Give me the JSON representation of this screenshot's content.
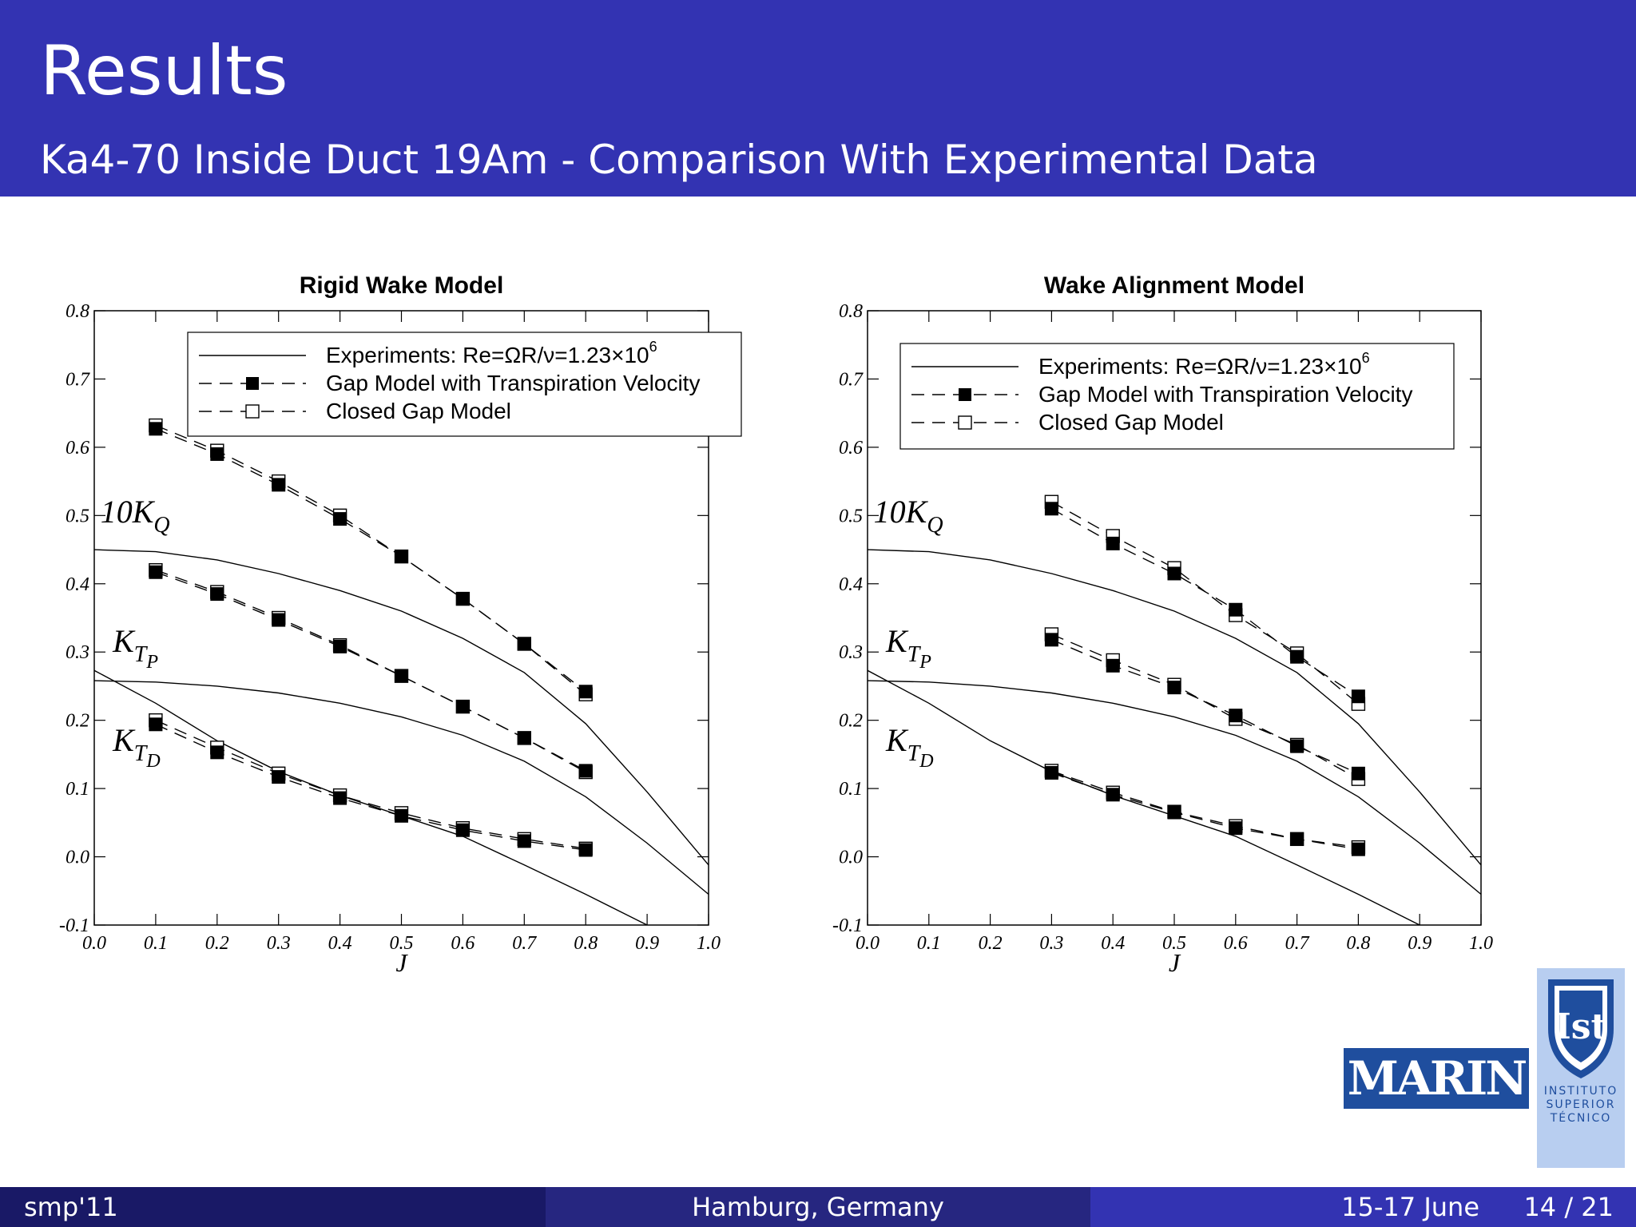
{
  "header": {
    "title": "Results",
    "subtitle": "Ka4-70 Inside Duct 19Am - Comparison With Experimental Data",
    "background_color": "#3333b2"
  },
  "footer": {
    "left": "smp'11",
    "center": "Hamburg, Germany",
    "date": "15-17 June",
    "page": "14 / 21"
  },
  "logos": {
    "marin": "MARIN",
    "ist_lines": [
      "INSTITUTO",
      "SUPERIOR",
      "TÉCNICO"
    ]
  },
  "chart_data": [
    {
      "type": "line",
      "title": "Rigid Wake Model",
      "xlabel": "J",
      "ylabel": "",
      "xlim": [
        0.0,
        1.0
      ],
      "ylim": [
        -0.1,
        0.8
      ],
      "xticks": [
        "0.0",
        "0.1",
        "0.2",
        "0.3",
        "0.4",
        "0.5",
        "0.6",
        "0.7",
        "0.8",
        "0.9",
        "1.0"
      ],
      "yticks": [
        "-0.1",
        "0.0",
        "0.1",
        "0.2",
        "0.3",
        "0.4",
        "0.5",
        "0.6",
        "0.7",
        "0.8"
      ],
      "grid": false,
      "legend_position": "top-right",
      "legend": [
        {
          "label": "Experiments: Re=ΩR/ν=1.23×10",
          "sup": "6",
          "style": "solid"
        },
        {
          "label": "Gap Model with Transpiration Velocity",
          "style": "dashed-filled"
        },
        {
          "label": "Closed Gap Model",
          "style": "dashed-open"
        }
      ],
      "annotations": [
        {
          "base": "10K",
          "sub": "Q",
          "subsub": "",
          "x": 0.01,
          "y": 0.49
        },
        {
          "base": "K",
          "sub": "T",
          "subsub": "P",
          "x": 0.03,
          "y": 0.3
        },
        {
          "base": "K",
          "sub": "T",
          "subsub": "D",
          "x": 0.03,
          "y": 0.155
        }
      ],
      "series": [
        {
          "name": "Experiments 10KQ",
          "style": "solid",
          "x": [
            0.0,
            0.1,
            0.2,
            0.3,
            0.4,
            0.5,
            0.6,
            0.7,
            0.8,
            0.9,
            1.0
          ],
          "y": [
            0.45,
            0.447,
            0.435,
            0.415,
            0.39,
            0.36,
            0.32,
            0.27,
            0.195,
            0.095,
            -0.012
          ]
        },
        {
          "name": "Experiments KTP",
          "style": "solid",
          "x": [
            0.0,
            0.1,
            0.2,
            0.3,
            0.4,
            0.5,
            0.6,
            0.7,
            0.8,
            0.9,
            1.0
          ],
          "y": [
            0.258,
            0.256,
            0.25,
            0.24,
            0.225,
            0.205,
            0.178,
            0.14,
            0.088,
            0.02,
            -0.055
          ]
        },
        {
          "name": "Experiments KTD",
          "style": "solid",
          "x": [
            0.0,
            0.1,
            0.2,
            0.3,
            0.4,
            0.5,
            0.6,
            0.7,
            0.8,
            0.9
          ],
          "y": [
            0.273,
            0.225,
            0.17,
            0.125,
            0.09,
            0.06,
            0.03,
            -0.012,
            -0.055,
            -0.1
          ]
        },
        {
          "name": "Gap Model 10KQ",
          "style": "dashed-filled",
          "x": [
            0.1,
            0.2,
            0.3,
            0.4,
            0.5,
            0.6,
            0.7,
            0.8
          ],
          "y": [
            0.627,
            0.59,
            0.545,
            0.495,
            0.44,
            0.378,
            0.312,
            0.242
          ]
        },
        {
          "name": "Closed Gap 10KQ",
          "style": "dashed-open",
          "x": [
            0.1,
            0.2,
            0.3,
            0.4,
            0.5,
            0.6,
            0.7,
            0.8
          ],
          "y": [
            0.632,
            0.595,
            0.55,
            0.5,
            0.44,
            0.378,
            0.312,
            0.238
          ]
        },
        {
          "name": "Gap Model KTP",
          "style": "dashed-filled",
          "x": [
            0.1,
            0.2,
            0.3,
            0.4,
            0.5,
            0.6,
            0.7,
            0.8
          ],
          "y": [
            0.417,
            0.385,
            0.347,
            0.308,
            0.265,
            0.22,
            0.174,
            0.126
          ]
        },
        {
          "name": "Closed Gap KTP",
          "style": "dashed-open",
          "x": [
            0.1,
            0.2,
            0.3,
            0.4,
            0.5,
            0.6,
            0.7,
            0.8
          ],
          "y": [
            0.42,
            0.388,
            0.35,
            0.31,
            0.265,
            0.22,
            0.174,
            0.124
          ]
        },
        {
          "name": "Gap Model KTD",
          "style": "dashed-filled",
          "x": [
            0.1,
            0.2,
            0.3,
            0.4,
            0.5,
            0.6,
            0.7,
            0.8
          ],
          "y": [
            0.194,
            0.153,
            0.117,
            0.086,
            0.06,
            0.039,
            0.023,
            0.01
          ]
        },
        {
          "name": "Closed Gap KTD",
          "style": "dashed-open",
          "x": [
            0.1,
            0.2,
            0.3,
            0.4,
            0.5,
            0.6,
            0.7,
            0.8
          ],
          "y": [
            0.2,
            0.16,
            0.122,
            0.09,
            0.064,
            0.042,
            0.026,
            0.012
          ]
        }
      ]
    },
    {
      "type": "line",
      "title": "Wake Alignment Model",
      "xlabel": "J",
      "ylabel": "",
      "xlim": [
        0.0,
        1.0
      ],
      "ylim": [
        -0.1,
        0.8
      ],
      "xticks": [
        "0.0",
        "0.1",
        "0.2",
        "0.3",
        "0.4",
        "0.5",
        "0.6",
        "0.7",
        "0.8",
        "0.9",
        "1.0"
      ],
      "yticks": [
        "-0.1",
        "0.0",
        "0.1",
        "0.2",
        "0.3",
        "0.4",
        "0.5",
        "0.6",
        "0.7",
        "0.8"
      ],
      "grid": false,
      "legend_position": "top-right",
      "legend": [
        {
          "label": "Experiments: Re=ΩR/ν=1.23×10",
          "sup": "6",
          "style": "solid"
        },
        {
          "label": "Gap Model with Transpiration Velocity",
          "style": "dashed-filled"
        },
        {
          "label": "Closed Gap Model",
          "style": "dashed-open"
        }
      ],
      "annotations": [
        {
          "base": "10K",
          "sub": "Q",
          "subsub": "",
          "x": 0.01,
          "y": 0.49
        },
        {
          "base": "K",
          "sub": "T",
          "subsub": "P",
          "x": 0.03,
          "y": 0.3
        },
        {
          "base": "K",
          "sub": "T",
          "subsub": "D",
          "x": 0.03,
          "y": 0.155
        }
      ],
      "series": [
        {
          "name": "Experiments 10KQ",
          "style": "solid",
          "x": [
            0.0,
            0.1,
            0.2,
            0.3,
            0.4,
            0.5,
            0.6,
            0.7,
            0.8,
            0.9,
            1.0
          ],
          "y": [
            0.45,
            0.447,
            0.435,
            0.415,
            0.39,
            0.36,
            0.32,
            0.27,
            0.195,
            0.095,
            -0.012
          ]
        },
        {
          "name": "Experiments KTP",
          "style": "solid",
          "x": [
            0.0,
            0.1,
            0.2,
            0.3,
            0.4,
            0.5,
            0.6,
            0.7,
            0.8,
            0.9,
            1.0
          ],
          "y": [
            0.258,
            0.256,
            0.25,
            0.24,
            0.225,
            0.205,
            0.178,
            0.14,
            0.088,
            0.02,
            -0.055
          ]
        },
        {
          "name": "Experiments KTD",
          "style": "solid",
          "x": [
            0.0,
            0.1,
            0.2,
            0.3,
            0.4,
            0.5,
            0.6,
            0.7,
            0.8,
            0.9
          ],
          "y": [
            0.273,
            0.225,
            0.17,
            0.125,
            0.09,
            0.06,
            0.03,
            -0.012,
            -0.055,
            -0.1
          ]
        },
        {
          "name": "Gap Model 10KQ",
          "style": "dashed-filled",
          "x": [
            0.3,
            0.4,
            0.5,
            0.6,
            0.7,
            0.8
          ],
          "y": [
            0.51,
            0.459,
            0.415,
            0.362,
            0.293,
            0.235
          ]
        },
        {
          "name": "Closed Gap 10KQ",
          "style": "dashed-open",
          "x": [
            0.3,
            0.4,
            0.5,
            0.6,
            0.7,
            0.8
          ],
          "y": [
            0.52,
            0.47,
            0.423,
            0.354,
            0.298,
            0.224
          ]
        },
        {
          "name": "Gap Model KTP",
          "style": "dashed-filled",
          "x": [
            0.3,
            0.4,
            0.5,
            0.6,
            0.7,
            0.8
          ],
          "y": [
            0.318,
            0.28,
            0.248,
            0.207,
            0.162,
            0.122
          ]
        },
        {
          "name": "Closed Gap KTP",
          "style": "dashed-open",
          "x": [
            0.3,
            0.4,
            0.5,
            0.6,
            0.7,
            0.8
          ],
          "y": [
            0.326,
            0.288,
            0.252,
            0.202,
            0.164,
            0.114
          ]
        },
        {
          "name": "Gap Model KTD",
          "style": "dashed-filled",
          "x": [
            0.3,
            0.4,
            0.5,
            0.6,
            0.7,
            0.8
          ],
          "y": [
            0.123,
            0.091,
            0.065,
            0.042,
            0.026,
            0.011
          ]
        },
        {
          "name": "Closed Gap KTD",
          "style": "dashed-open",
          "x": [
            0.3,
            0.4,
            0.5,
            0.6,
            0.7,
            0.8
          ],
          "y": [
            0.126,
            0.094,
            0.066,
            0.045,
            0.026,
            0.014
          ]
        }
      ]
    }
  ]
}
